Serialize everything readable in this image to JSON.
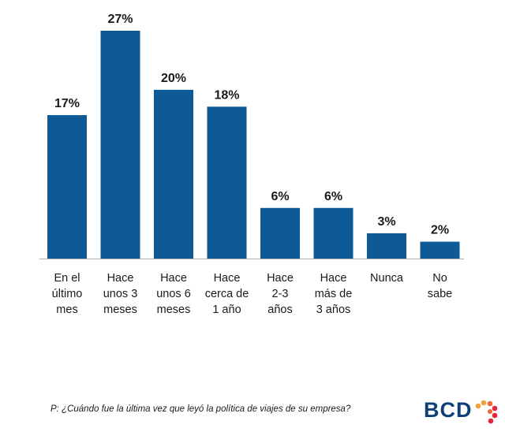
{
  "chart_data": {
    "type": "bar",
    "categories": [
      [
        "En el",
        "último",
        "mes"
      ],
      [
        "Hace",
        "unos 3",
        "meses"
      ],
      [
        "Hace",
        "unos 6",
        "meses"
      ],
      [
        "Hace",
        "cerca de",
        "1 año"
      ],
      [
        "Hace",
        "2-3",
        "años"
      ],
      [
        "Hace",
        "más de",
        "3 años"
      ],
      [
        "Nunca"
      ],
      [
        "No",
        "sabe"
      ]
    ],
    "values": [
      17,
      27,
      20,
      18,
      6,
      6,
      3,
      2
    ],
    "value_labels": [
      "17%",
      "27%",
      "20%",
      "18%",
      "6%",
      "6%",
      "3%",
      "2%"
    ],
    "ylim": [
      0,
      27
    ],
    "bar_color": "#0e5a96",
    "grid": false
  },
  "footnote": "P: ¿Cuándo fue la última vez que leyó la política de viajes de su empresa?",
  "logo": {
    "text": "BCD",
    "dot_colors": [
      "#f2a23a",
      "#ef6a3a",
      "#e2283a"
    ]
  }
}
